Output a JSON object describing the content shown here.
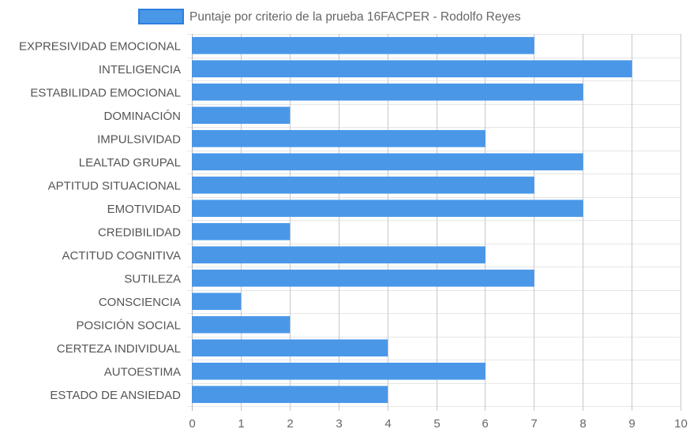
{
  "chart_data": {
    "type": "bar",
    "orientation": "horizontal",
    "legend_position": "top",
    "grid": true,
    "xlim": [
      0,
      10
    ],
    "x_ticks": [
      "0",
      "1",
      "2",
      "3",
      "4",
      "5",
      "6",
      "7",
      "8",
      "9",
      "10"
    ],
    "categories": [
      "EXPRESIVIDAD EMOCIONAL",
      "INTELIGENCIA",
      "ESTABILIDAD EMOCIONAL",
      "DOMINACIÓN",
      "IMPULSIVIDAD",
      "LEALTAD GRUPAL",
      "APTITUD SITUACIONAL",
      "EMOTIVIDAD",
      "CREDIBILIDAD",
      "ACTITUD COGNITIVA",
      "SUTILEZA",
      "CONSCIENCIA",
      "POSICIÓN SOCIAL",
      "CERTEZA INDIVIDUAL",
      "AUTOESTIMA",
      "ESTADO DE ANSIEDAD"
    ],
    "series": [
      {
        "name": "Puntaje por criterio de la prueba 16FACPER - Rodolfo Reyes",
        "color": "#4A97E8",
        "border_color": "#2C7FE0",
        "values": [
          7,
          9,
          8,
          2,
          6,
          8,
          7,
          8,
          2,
          6,
          7,
          1,
          2,
          4,
          6,
          4
        ]
      }
    ]
  }
}
